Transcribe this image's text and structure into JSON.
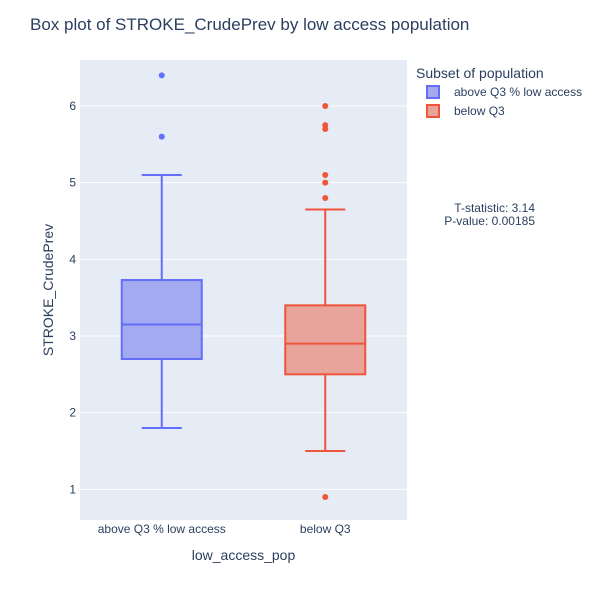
{
  "chart_data": {
    "type": "box",
    "title": "Box plot of STROKE_CrudePrev by low access population",
    "xlabel": "low_access_pop",
    "ylabel": "STROKE_CrudePrev",
    "ylim": [
      0.6,
      6.6
    ],
    "yticks": [
      1,
      2,
      3,
      4,
      5,
      6
    ],
    "categories": [
      "above Q3 % low access",
      "below Q3"
    ],
    "grid": true,
    "legend": {
      "title": "Subset of population",
      "position": "top-right",
      "entries": [
        "above Q3 % low access",
        "below Q3"
      ]
    },
    "annotation": {
      "lines": [
        "T-statistic: 3.14",
        "P-value: 0.00185"
      ]
    },
    "series": [
      {
        "name": "above Q3 % low access",
        "color": "#636efa",
        "fill": "#a3aaf0",
        "lower_fence": 1.8,
        "q1": 2.7,
        "median": 3.15,
        "q3": 3.73,
        "upper_fence": 5.1,
        "outliers": [
          5.6,
          6.4
        ]
      },
      {
        "name": "below Q3",
        "color": "#ef553b",
        "fill": "#e8a39b",
        "lower_fence": 1.5,
        "q1": 2.5,
        "median": 2.9,
        "q3": 3.4,
        "upper_fence": 4.65,
        "outliers": [
          0.9,
          4.8,
          5.0,
          5.1,
          5.7,
          5.75,
          6.0
        ]
      }
    ]
  }
}
